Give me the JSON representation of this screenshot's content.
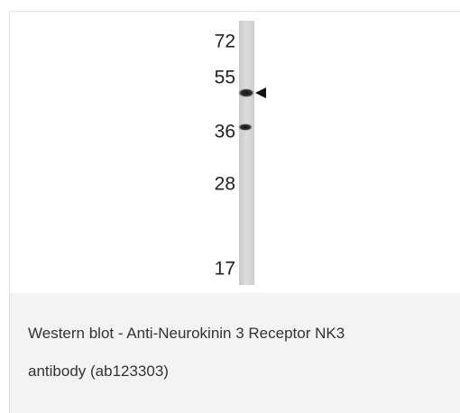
{
  "blot": {
    "markers": [
      "72",
      "55",
      "36",
      "28",
      "17"
    ]
  },
  "caption": "Western blot - Anti-Neurokinin 3 Receptor NK3 antibody (ab123303)"
}
